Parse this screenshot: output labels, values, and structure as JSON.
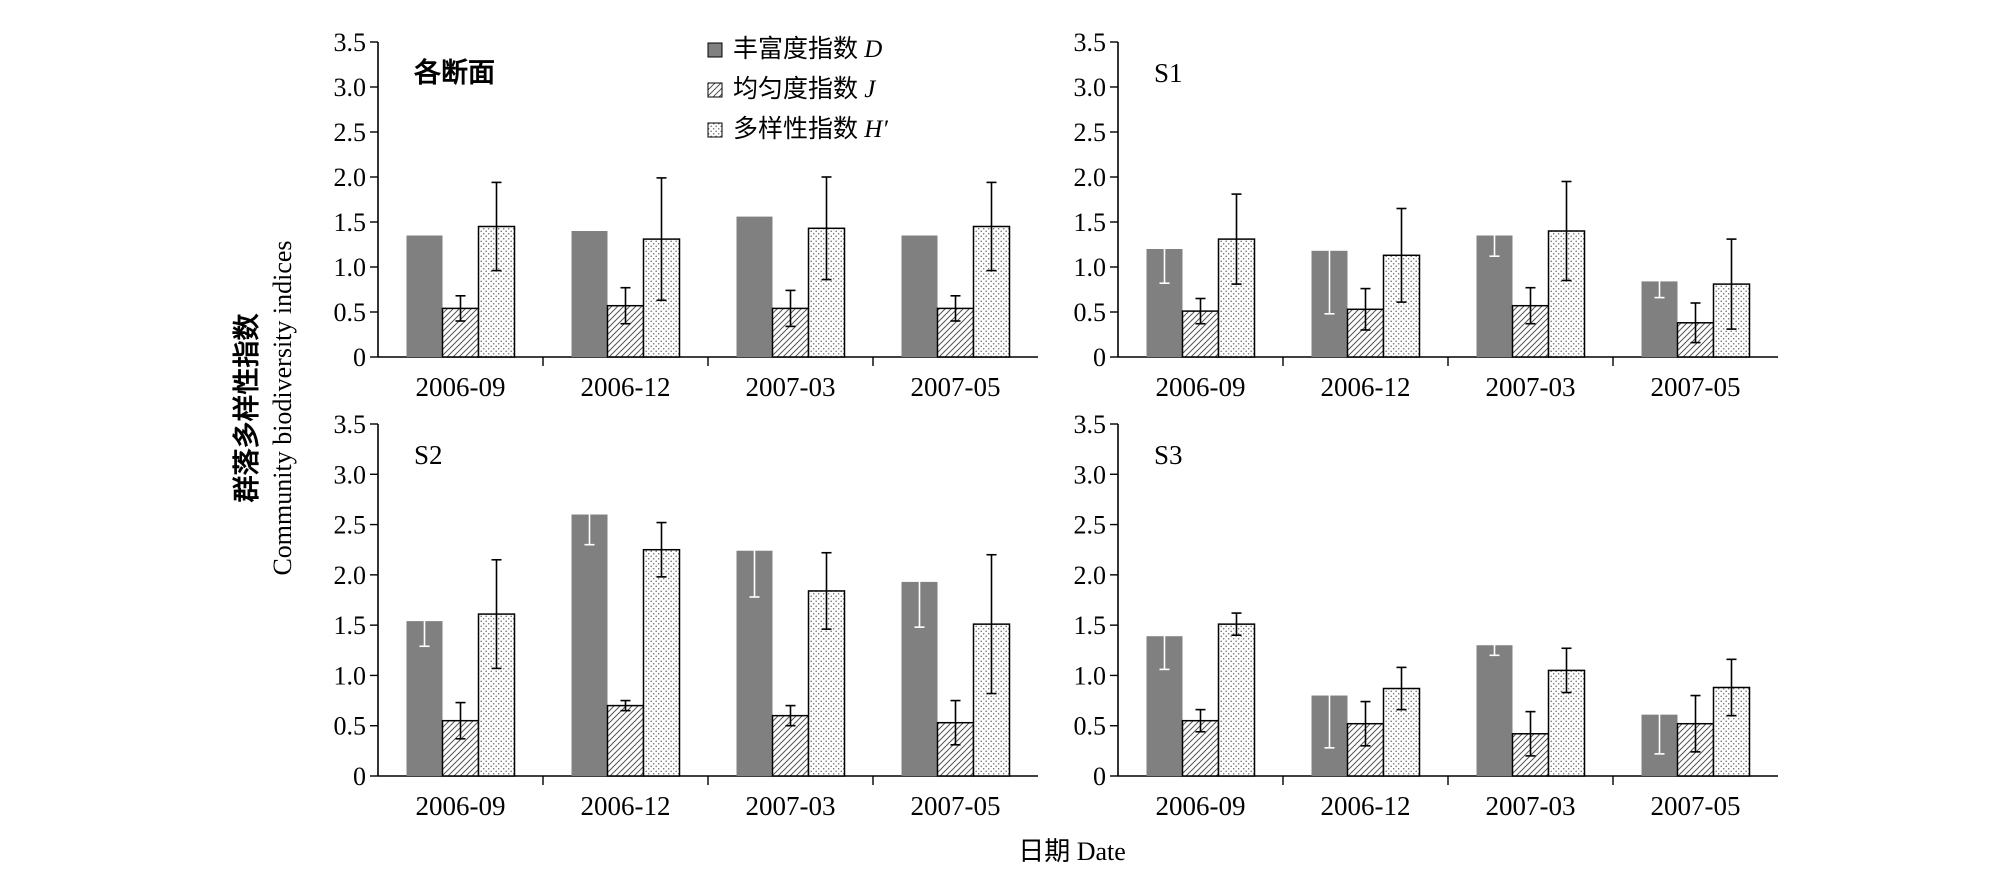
{
  "figure": {
    "ylabel_cn": "群落多样性指数",
    "ylabel_en": "Community biodiversity indices",
    "xlabel": "日期 Date"
  },
  "legend": [
    {
      "label": "丰富度指数",
      "symbol": "D",
      "pattern": "solid",
      "color": "#808080"
    },
    {
      "label": "均匀度指数",
      "symbol": "J",
      "pattern": "hatch",
      "color": "#ffffff"
    },
    {
      "label": "多样性指数",
      "symbol": "H′",
      "pattern": "dots",
      "color": "#ffffff"
    }
  ],
  "chart_data": [
    {
      "type": "bar",
      "panel_label": "各断面",
      "categories": [
        "2006-09",
        "2006-12",
        "2007-03",
        "2007-05"
      ],
      "ylim": [
        0,
        3.5
      ],
      "yticks": [
        0,
        0.5,
        1.0,
        1.5,
        2.0,
        2.5,
        3.0,
        3.5
      ],
      "ytick_labels": [
        "0",
        "0.5",
        "1.0",
        "1.5",
        "2.0",
        "2.5",
        "3.0",
        "3.5"
      ],
      "series": [
        {
          "name": "丰富度指数 D",
          "values": [
            1.35,
            1.4,
            1.56,
            1.35
          ],
          "errors": [
            null,
            null,
            null,
            null
          ]
        },
        {
          "name": "均匀度指数 J",
          "values": [
            0.54,
            0.57,
            0.54,
            0.54
          ],
          "errors": [
            0.14,
            0.2,
            0.2,
            0.14
          ]
        },
        {
          "name": "多样性指数 H′",
          "values": [
            1.45,
            1.31,
            1.43,
            1.45
          ],
          "errors": [
            0.49,
            0.68,
            0.57,
            0.49
          ]
        }
      ]
    },
    {
      "type": "bar",
      "panel_label": "S1",
      "categories": [
        "2006-09",
        "2006-12",
        "2007-03",
        "2007-05"
      ],
      "ylim": [
        0,
        3.5
      ],
      "yticks": [
        0,
        0.5,
        1.0,
        1.5,
        2.0,
        2.5,
        3.0,
        3.5
      ],
      "ytick_labels": [
        "0",
        "0.5",
        "1.0",
        "1.5",
        "2.0",
        "2.5",
        "3.0",
        "3.5"
      ],
      "series": [
        {
          "name": "丰富度指数 D",
          "values": [
            1.2,
            1.18,
            1.35,
            0.84
          ],
          "errors": [
            0.38,
            0.7,
            0.23,
            0.18
          ]
        },
        {
          "name": "均匀度指数 J",
          "values": [
            0.51,
            0.53,
            0.57,
            0.38
          ],
          "errors": [
            0.14,
            0.23,
            0.2,
            0.22
          ]
        },
        {
          "name": "多样性指数 H′",
          "values": [
            1.31,
            1.13,
            1.4,
            0.81
          ],
          "errors": [
            0.5,
            0.52,
            0.55,
            0.5
          ]
        }
      ]
    },
    {
      "type": "bar",
      "panel_label": "S2",
      "categories": [
        "2006-09",
        "2006-12",
        "2007-03",
        "2007-05"
      ],
      "ylim": [
        0,
        3.5
      ],
      "yticks": [
        0,
        0.5,
        1.0,
        1.5,
        2.0,
        2.5,
        3.0,
        3.5
      ],
      "ytick_labels": [
        "0",
        "0.5",
        "1.0",
        "1.5",
        "2.0",
        "2.5",
        "3.0",
        "3.5"
      ],
      "series": [
        {
          "name": "丰富度指数 D",
          "values": [
            1.54,
            2.6,
            2.24,
            1.93
          ],
          "errors": [
            0.25,
            0.3,
            0.46,
            0.45
          ]
        },
        {
          "name": "均匀度指数 J",
          "values": [
            0.55,
            0.7,
            0.6,
            0.53
          ],
          "errors": [
            0.18,
            0.05,
            0.1,
            0.22
          ]
        },
        {
          "name": "多样性指数 H′",
          "values": [
            1.61,
            2.25,
            1.84,
            1.51
          ],
          "errors": [
            0.54,
            0.27,
            0.38,
            0.69
          ]
        }
      ]
    },
    {
      "type": "bar",
      "panel_label": "S3",
      "categories": [
        "2006-09",
        "2006-12",
        "2007-03",
        "2007-05"
      ],
      "ylim": [
        0,
        3.5
      ],
      "yticks": [
        0,
        0.5,
        1.0,
        1.5,
        2.0,
        2.5,
        3.0,
        3.5
      ],
      "ytick_labels": [
        "0",
        "0.5",
        "1.0",
        "1.5",
        "2.0",
        "2.5",
        "3.0",
        "3.5"
      ],
      "series": [
        {
          "name": "丰富度指数 D",
          "values": [
            1.39,
            0.8,
            1.3,
            0.61
          ],
          "errors": [
            0.33,
            0.52,
            0.1,
            0.39
          ]
        },
        {
          "name": "均匀度指数 J",
          "values": [
            0.55,
            0.52,
            0.42,
            0.52
          ],
          "errors": [
            0.11,
            0.22,
            0.22,
            0.28
          ]
        },
        {
          "name": "多样性指数 H′",
          "values": [
            1.51,
            0.87,
            1.05,
            0.88
          ],
          "errors": [
            0.11,
            0.21,
            0.22,
            0.28
          ]
        }
      ]
    }
  ]
}
